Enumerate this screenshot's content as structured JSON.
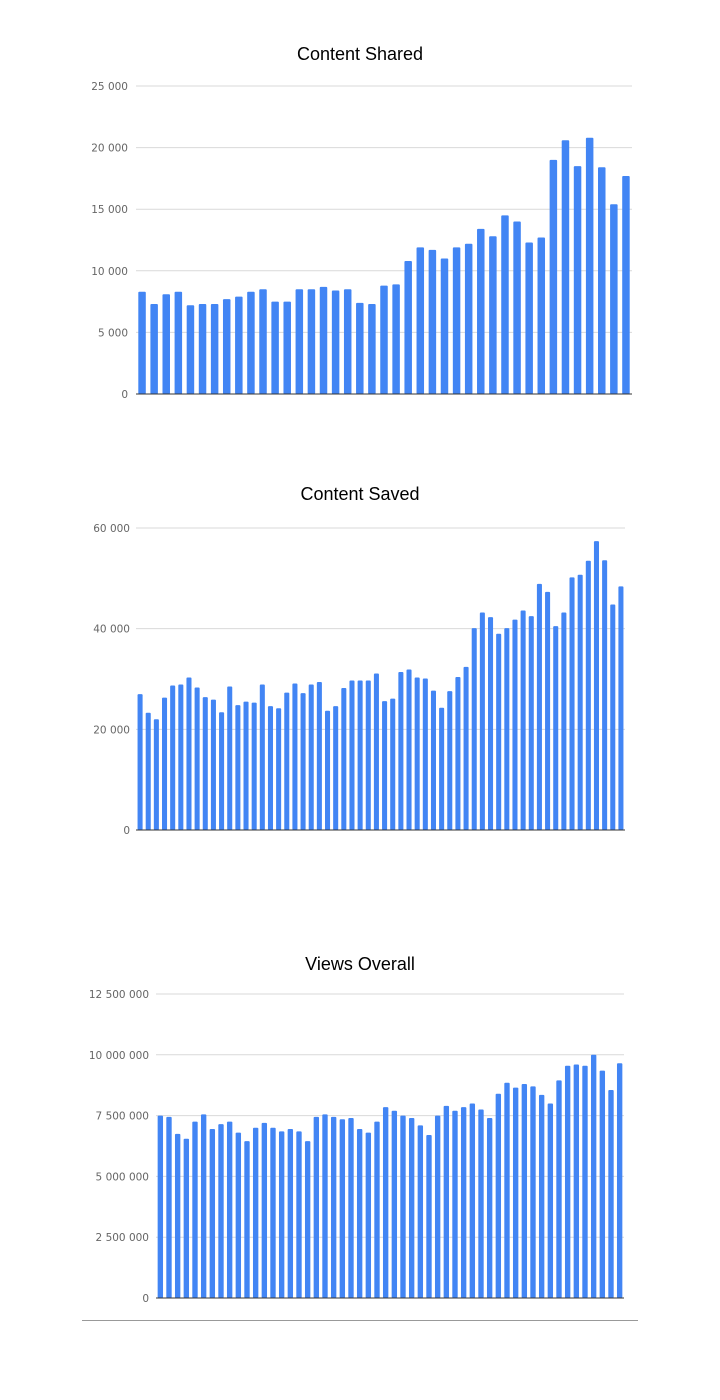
{
  "chart_data": [
    {
      "type": "bar",
      "title": "Content Shared",
      "xlabel": "",
      "ylabel": "",
      "ylim": [
        0,
        25000
      ],
      "y_ticks": [
        "0",
        "5 000",
        "10 000",
        "15 000",
        "20 000",
        "25 000"
      ],
      "y_tick_values": [
        0,
        5000,
        10000,
        15000,
        20000,
        25000
      ],
      "grid": true,
      "colors": {
        "bar": "#4285f4"
      },
      "values": [
        8300,
        7300,
        8100,
        8300,
        7200,
        7300,
        7300,
        7700,
        7900,
        8300,
        8500,
        7500,
        7500,
        8500,
        8500,
        8700,
        8400,
        8500,
        7400,
        7300,
        8800,
        8900,
        10800,
        11900,
        11700,
        11000,
        11900,
        12200,
        13400,
        12800,
        14500,
        14000,
        12300,
        12700,
        19000,
        20600,
        18500,
        20800,
        18400,
        15400,
        17700
      ]
    },
    {
      "type": "bar",
      "title": "Content Saved",
      "xlabel": "",
      "ylabel": "",
      "ylim": [
        0,
        60000
      ],
      "y_ticks": [
        "0",
        "20 000",
        "40 000",
        "60 000"
      ],
      "y_tick_values": [
        0,
        20000,
        40000,
        60000
      ],
      "grid": true,
      "colors": {
        "bar": "#4285f4"
      },
      "values": [
        27000,
        23300,
        22000,
        26300,
        28700,
        28900,
        30300,
        28300,
        26400,
        25900,
        23400,
        28500,
        24800,
        25500,
        25300,
        28900,
        24600,
        24200,
        27300,
        29100,
        27200,
        28900,
        29400,
        23700,
        24600,
        28200,
        29700,
        29700,
        29700,
        31100,
        25600,
        26100,
        31400,
        31900,
        30300,
        30100,
        27700,
        24300,
        27600,
        30400,
        32400,
        40100,
        43200,
        42300,
        39000,
        40100,
        41800,
        43600,
        42500,
        48900,
        47300,
        40500,
        43200,
        50200,
        50700,
        53500,
        57400,
        53600,
        44800,
        48400
      ]
    },
    {
      "type": "bar",
      "title": "Views Overall",
      "xlabel": "",
      "ylabel": "",
      "ylim": [
        0,
        12500000
      ],
      "y_ticks": [
        "0",
        "2 500 000",
        "5 000 000",
        "7 500 000",
        "10 000 000",
        "12 500 000"
      ],
      "y_tick_values": [
        0,
        2500000,
        5000000,
        7500000,
        10000000,
        12500000
      ],
      "grid": true,
      "colors": {
        "bar": "#4285f4"
      },
      "values": [
        7500000,
        7450000,
        6750000,
        6550000,
        7250000,
        7550000,
        6950000,
        7150000,
        7250000,
        6800000,
        6450000,
        7000000,
        7200000,
        7000000,
        6850000,
        6950000,
        6850000,
        6450000,
        7450000,
        7550000,
        7450000,
        7350000,
        7400000,
        6950000,
        6800000,
        7250000,
        7850000,
        7700000,
        7500000,
        7400000,
        7100000,
        6700000,
        7500000,
        7900000,
        7700000,
        7850000,
        8000000,
        7750000,
        7400000,
        8400000,
        8850000,
        8650000,
        8800000,
        8700000,
        8350000,
        8000000,
        8950000,
        9550000,
        9600000,
        9550000,
        10000000,
        9350000,
        8550000,
        9650000
      ]
    }
  ]
}
